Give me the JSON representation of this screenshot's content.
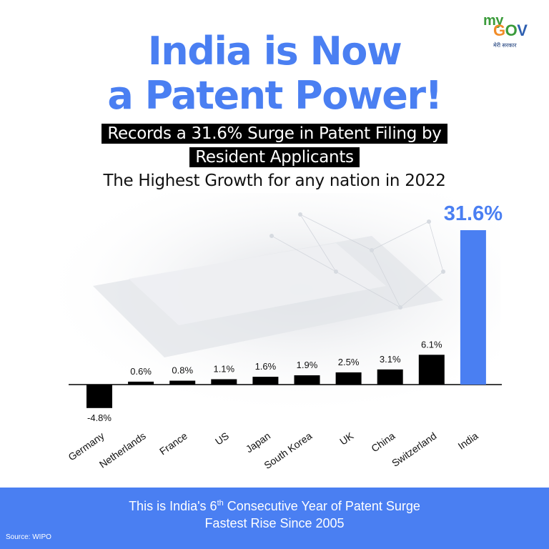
{
  "brand": {
    "logo_my": "my",
    "logo_gov": "GOV",
    "logo_tagline": "मेरी सरकार"
  },
  "headline": {
    "line1": "India is Now",
    "line2": "a Patent Power!"
  },
  "highlight": {
    "line1": "Records a 31.6% Surge in Patent Filing by",
    "line2": "Resident Applicants"
  },
  "subtitle": "The Highest Growth for any nation in 2022",
  "chart_data": {
    "type": "bar",
    "categories": [
      "Germany",
      "Netherlands",
      "France",
      "US",
      "Japan",
      "South Korea",
      "UK",
      "China",
      "Switzerland",
      "India"
    ],
    "values": [
      -4.8,
      0.6,
      0.8,
      1.1,
      1.6,
      1.9,
      2.5,
      3.1,
      6.1,
      31.6
    ],
    "value_labels": [
      "-4.8%",
      "0.6%",
      "0.8%",
      "1.1%",
      "1.6%",
      "1.9%",
      "2.5%",
      "3.1%",
      "6.1%",
      "31.6%"
    ],
    "unit": "%",
    "colors": {
      "default": "#000000",
      "highlight": "#4a7ff2"
    },
    "highlight_category": "India",
    "grid": false,
    "legend": "none"
  },
  "footer": {
    "line1_pre": "This is India's 6",
    "line1_sup": "th",
    "line1_post": " Consecutive Year of Patent Surge",
    "line2": "Fastest Rise Since 2005",
    "source": "Source: WIPO"
  }
}
